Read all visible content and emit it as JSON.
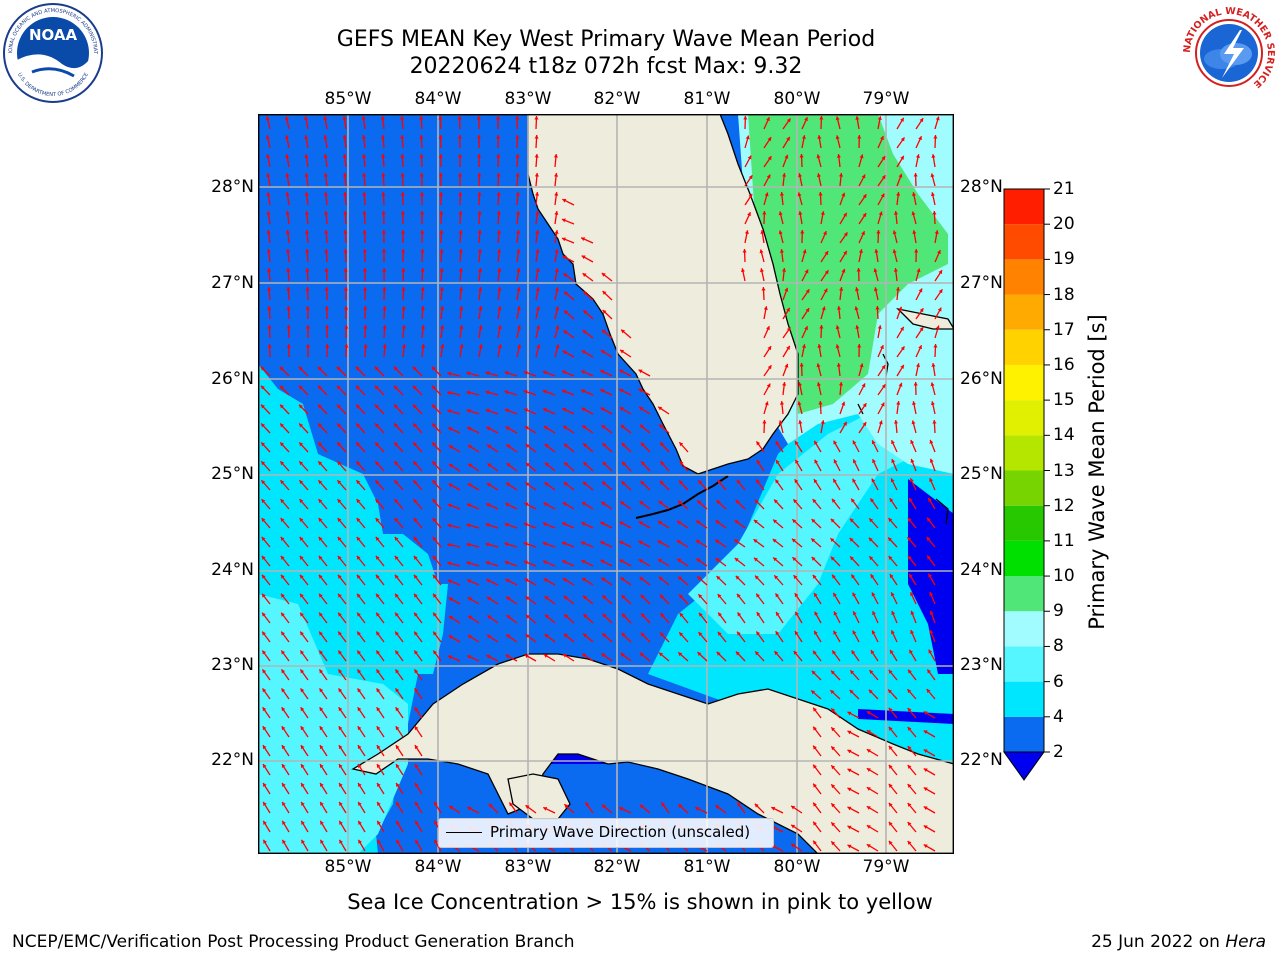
{
  "title_line1": "GEFS MEAN Key West Primary Wave Mean Period",
  "title_line2": "20220624 t18z 072h fcst   Max: 9.32",
  "lon_ticks": [
    "85°W",
    "84°W",
    "83°W",
    "82°W",
    "81°W",
    "80°W",
    "79°W"
  ],
  "lat_ticks": [
    "28°N",
    "27°N",
    "26°N",
    "25°N",
    "24°N",
    "23°N",
    "22°N"
  ],
  "colorbar": {
    "title": "Primary Wave Mean Period [s]",
    "labels": [
      "2",
      "4",
      "6",
      "8",
      "9",
      "10",
      "11",
      "12",
      "13",
      "14",
      "15",
      "16",
      "17",
      "18",
      "19",
      "20",
      "21"
    ],
    "colors": [
      "#0000f0",
      "#0a6af0",
      "#00e6ff",
      "#55f6ff",
      "#a0fcff",
      "#50e678",
      "#00e000",
      "#28c800",
      "#78d400",
      "#b4e600",
      "#e0f000",
      "#fff200",
      "#ffd200",
      "#ffaa00",
      "#ff8200",
      "#ff4b00",
      "#ff1e00",
      "#ff0000"
    ]
  },
  "map": {
    "region": "Florida / Cuba / Bahamas",
    "land_color": "#eeecdc",
    "arrow_color": "#ff0000",
    "grid_color": "#b4b4b4"
  },
  "legend_label": "Primary Wave Direction (unscaled)",
  "subtitle": "Sea Ice Concentration > 15% is shown in pink to yellow",
  "footer_left": "NCEP/EMC/Verification Post Processing Product Generation Branch",
  "footer_right_prefix": "25 Jun 2022 on ",
  "footer_right_system": "Hera",
  "logos": {
    "noaa_text": "NOAA",
    "noaa_ring_top": "NATIONAL OCEANIC AND ATMOSPHERIC ADMINISTRATION",
    "noaa_ring_bottom": "U.S. DEPARTMENT OF COMMERCE",
    "nws_ring": "NATIONAL WEATHER SERVICE"
  }
}
